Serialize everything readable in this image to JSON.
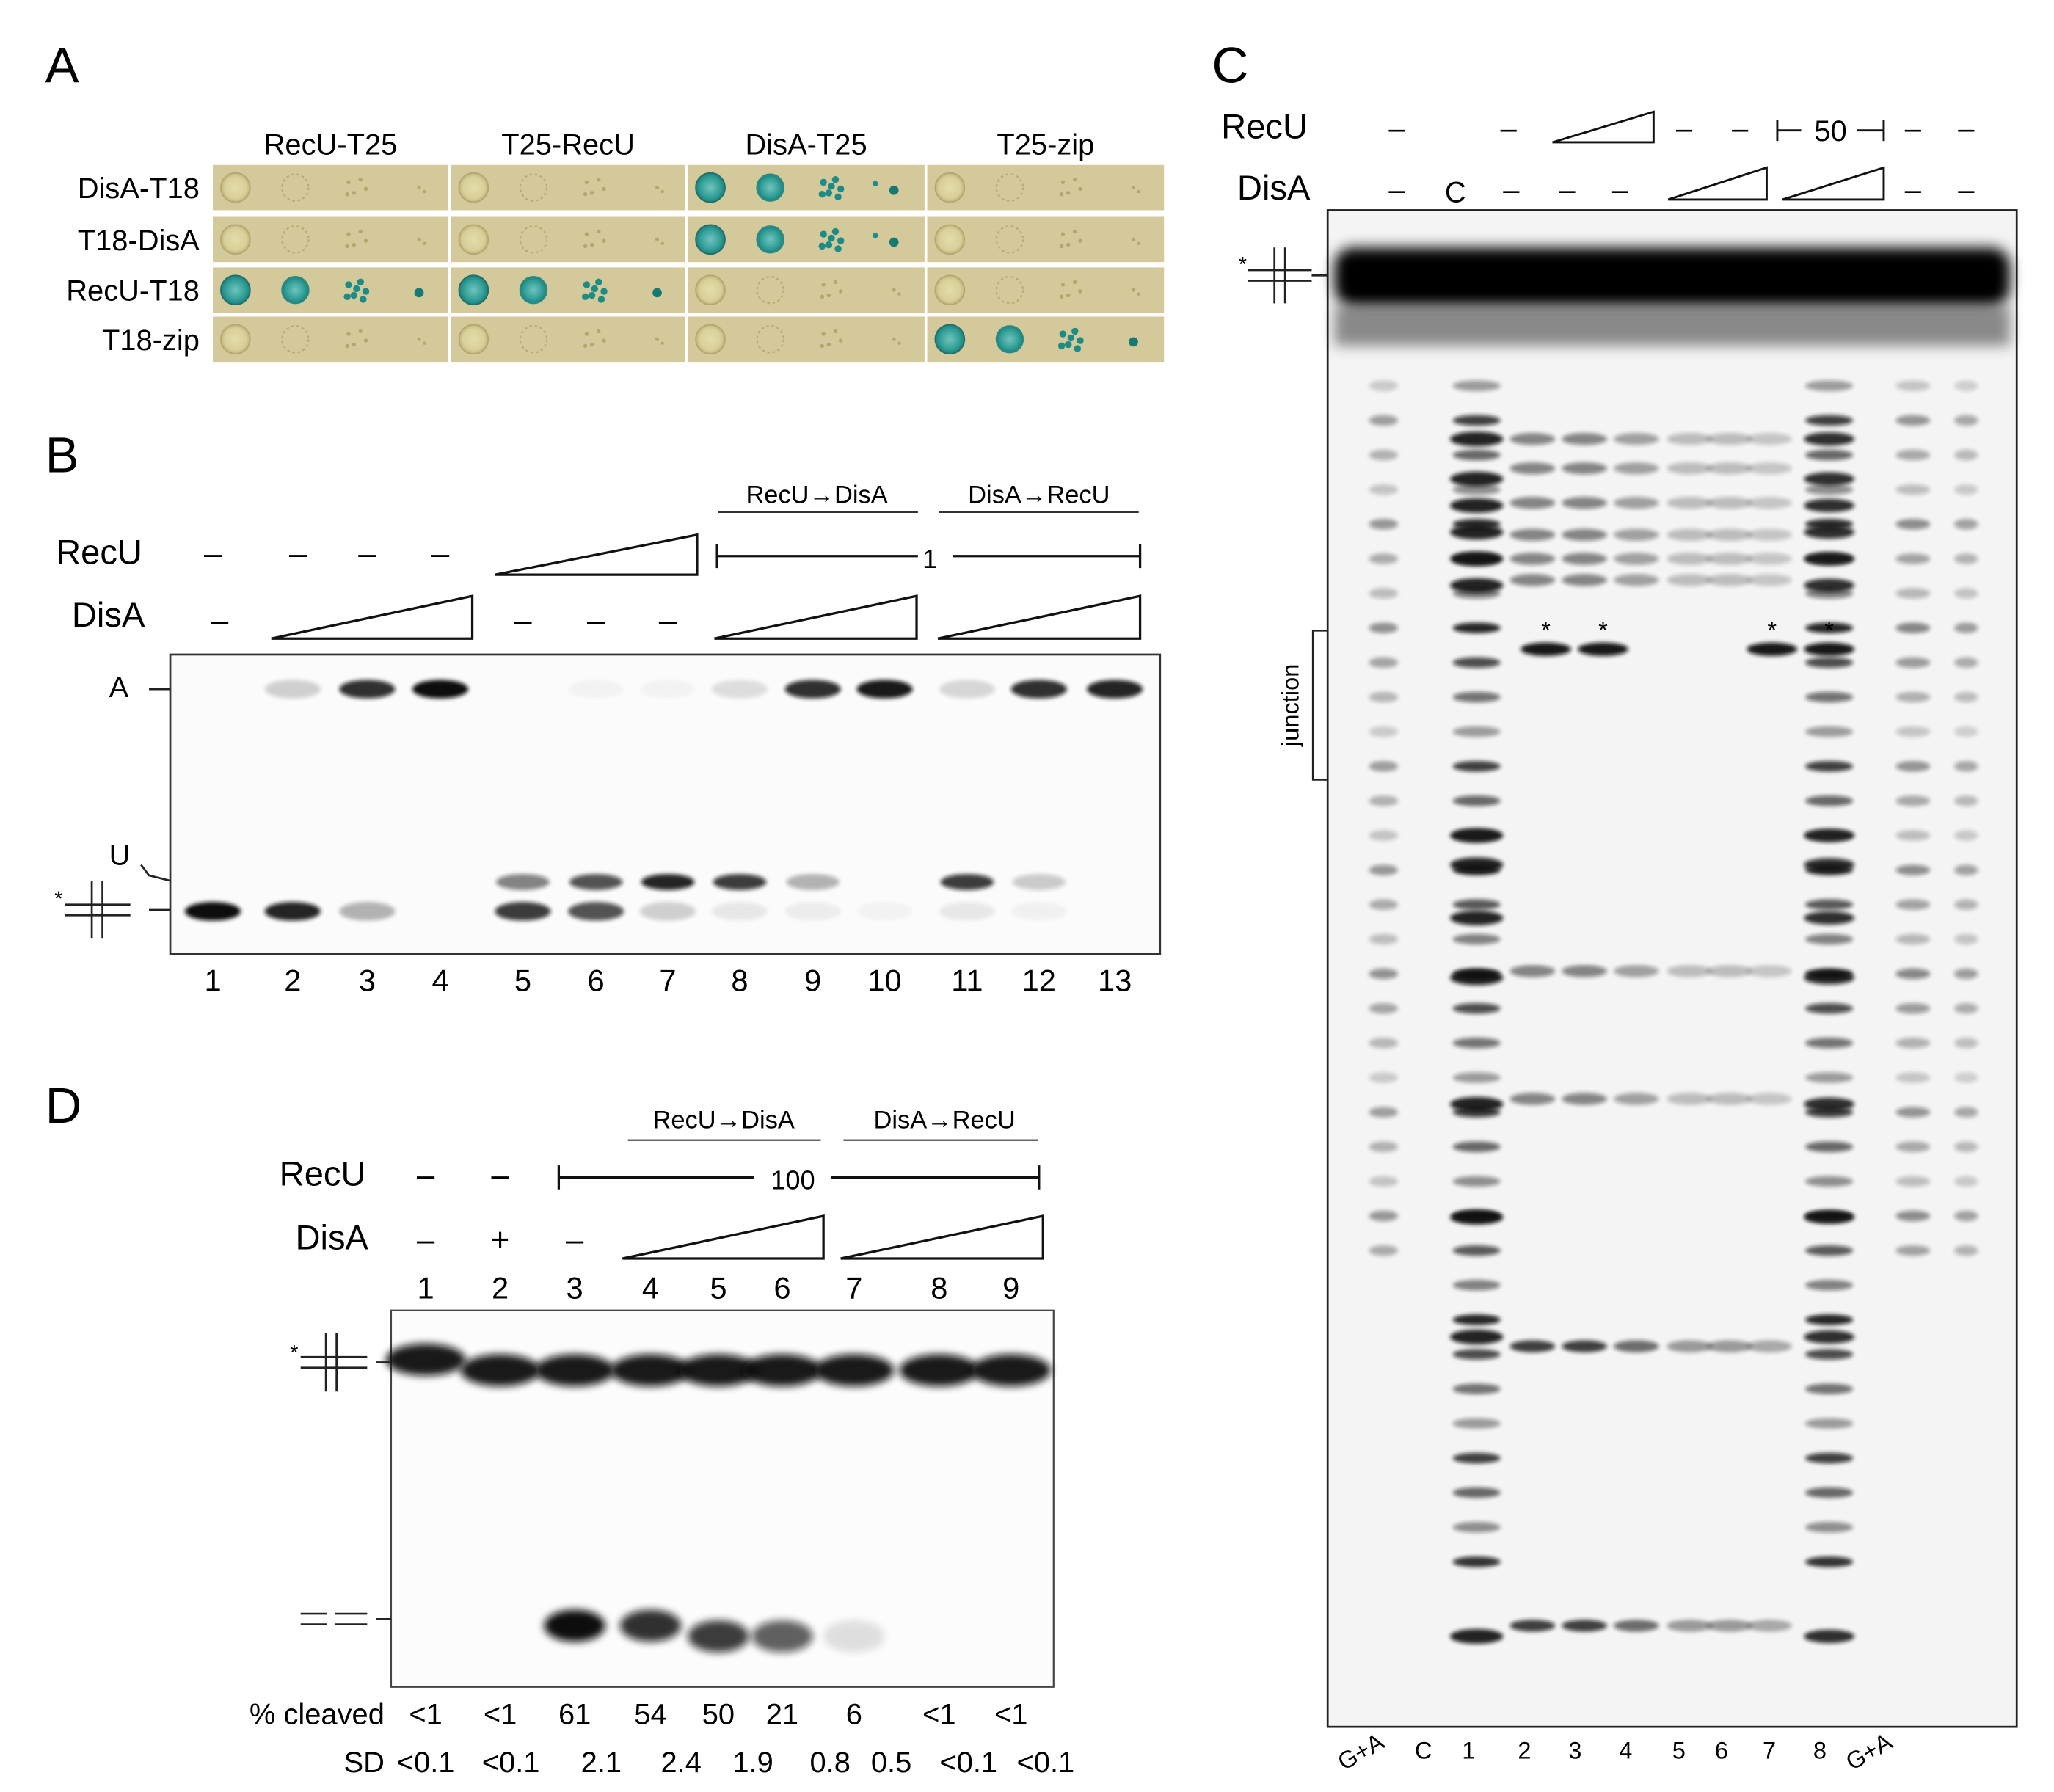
{
  "panels": {
    "A": {
      "letter": "A",
      "columns": [
        "RecU-T25",
        "T25-RecU",
        "DisA-T25",
        "T25-zip"
      ],
      "rows": [
        "DisA-T18",
        "T18-DisA",
        "RecU-T18",
        "T18-zip"
      ],
      "positive_pairs": [
        [
          0,
          2
        ],
        [
          1,
          2
        ],
        [
          2,
          0
        ],
        [
          2,
          1
        ],
        [
          3,
          3
        ]
      ]
    },
    "B": {
      "letter": "B",
      "recu_label": "RecU",
      "disa_label": "DisA",
      "order_label_1": "RecU→DisA",
      "order_label_2": "DisA→RecU",
      "recu_conc": "1",
      "dash": "–",
      "band_A": "A",
      "band_U": "U",
      "substrate_mark": "*",
      "lanes": [
        "1",
        "2",
        "3",
        "4",
        "5",
        "6",
        "7",
        "8",
        "9",
        "10",
        "11",
        "12",
        "13"
      ]
    },
    "C": {
      "letter": "C",
      "recu_label": "RecU",
      "disa_label": "DisA",
      "recu_conc": "50",
      "control_c": "C",
      "dash": "–",
      "star": "*",
      "junction_label": "junction",
      "bottom_lanes": [
        "G+A",
        "C",
        "1",
        "2",
        "3",
        "4",
        "5",
        "6",
        "7",
        "8",
        "G+A"
      ]
    },
    "D": {
      "letter": "D",
      "recu_label": "RecU",
      "disa_label": "DisA",
      "order_label_1": "RecU→DisA",
      "order_label_2": "DisA→RecU",
      "recu_conc": "100",
      "dash": "–",
      "plus": "+",
      "lanes": [
        "1",
        "2",
        "3",
        "4",
        "5",
        "6",
        "7",
        "8",
        "9"
      ],
      "cleaved_label": "% cleaved",
      "sd_label": "SD",
      "percent_cleaved": [
        "<1",
        "<1",
        "61",
        "54",
        "50",
        "21",
        "6",
        "<1",
        "<1"
      ],
      "sd": [
        "<0.1",
        "<0.1",
        "2.1",
        "2.4",
        "1.9",
        "0.8",
        "0.5",
        "<0.1",
        "<0.1"
      ]
    }
  }
}
